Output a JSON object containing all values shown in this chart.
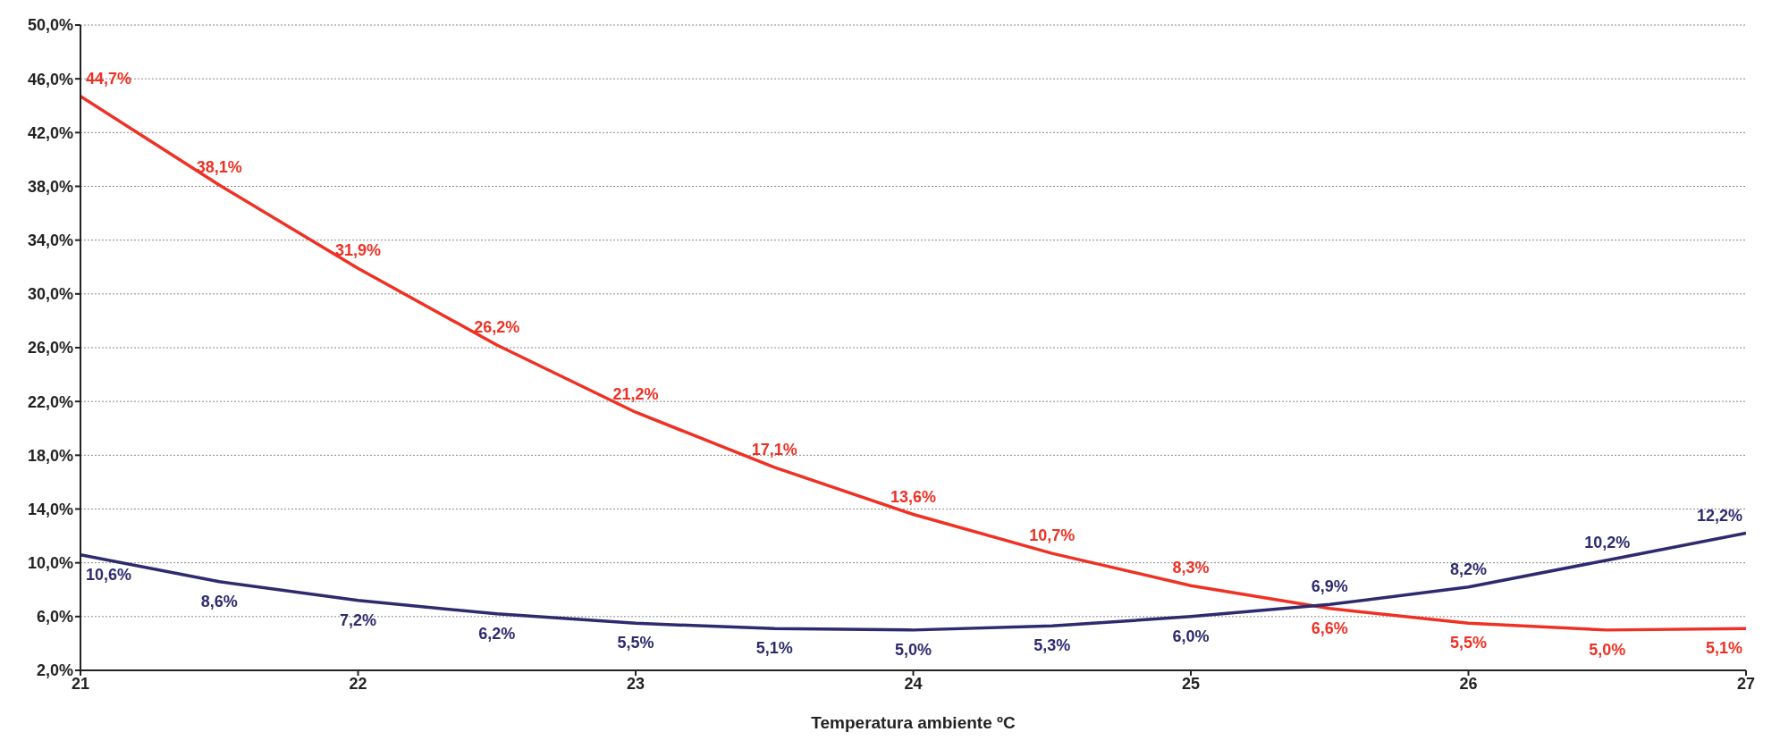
{
  "chart_data": {
    "type": "line",
    "xlabel": "Temperatura ambiente ºC",
    "x": [
      21,
      21.5,
      22,
      22.5,
      23,
      23.5,
      24,
      24.5,
      25,
      25.5,
      26,
      26.5,
      27
    ],
    "series": [
      {
        "color": "#ee3124",
        "values": [
          44.7,
          38.1,
          31.9,
          26.2,
          21.2,
          17.1,
          13.6,
          10.7,
          8.3,
          6.6,
          5.5,
          5.0,
          5.1
        ],
        "value_labels": [
          "44,7%",
          "38,1%",
          "31,9%",
          "26,2%",
          "21,2%",
          "17,1%",
          "13,6%",
          "10,7%",
          "8,3%",
          "6,6%",
          "5,5%",
          "5,0%",
          "5,1%"
        ]
      },
      {
        "color": "#2e2a6e",
        "values": [
          10.6,
          8.6,
          7.2,
          6.2,
          5.5,
          5.1,
          5.0,
          5.3,
          6.0,
          6.9,
          8.2,
          10.2,
          12.2
        ],
        "value_labels": [
          "10,6%",
          "8,6%",
          "7,2%",
          "6,2%",
          "5,5%",
          "5,1%",
          "5,0%",
          "5,3%",
          "6,0%",
          "6,9%",
          "8,2%",
          "10,2%",
          "12,2%"
        ]
      }
    ],
    "xlim": [
      21,
      27
    ],
    "xticks": [
      21,
      22,
      23,
      24,
      25,
      26,
      27
    ],
    "ylim": [
      2,
      50
    ],
    "yticks": [
      {
        "value": 2,
        "label": "2,0%"
      },
      {
        "value": 6,
        "label": "6,0%"
      },
      {
        "value": 10,
        "label": "10,0%"
      },
      {
        "value": 14,
        "label": "14,0%"
      },
      {
        "value": 18,
        "label": "18,0%"
      },
      {
        "value": 22,
        "label": "22,0%"
      },
      {
        "value": 26,
        "label": "26,0%"
      },
      {
        "value": 30,
        "label": "30,0%"
      },
      {
        "value": 34,
        "label": "34,0%"
      },
      {
        "value": 38,
        "label": "38,0%"
      },
      {
        "value": 42,
        "label": "42,0%"
      },
      {
        "value": 46,
        "label": "46,0%"
      },
      {
        "value": 50,
        "label": "50,0%"
      }
    ],
    "grid": "y",
    "legend": false,
    "marker": "none",
    "line_style": "solid"
  }
}
